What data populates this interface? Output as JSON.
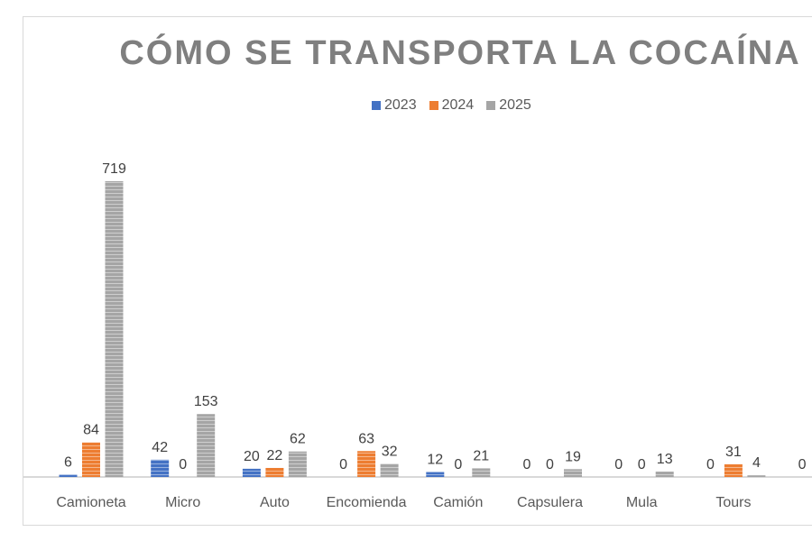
{
  "chart_data": {
    "type": "bar",
    "title": "CÓMO SE TRANSPORTA LA COCAÍNA",
    "categories": [
      "Camioneta",
      "Micro",
      "Auto",
      "Encomienda",
      "Camión",
      "Capsulera",
      "Mula",
      "Tours",
      ""
    ],
    "series": [
      {
        "name": "2023",
        "color": "#4472c4",
        "values": [
          6,
          42,
          20,
          0,
          12,
          0,
          0,
          0,
          0
        ]
      },
      {
        "name": "2024",
        "color": "#ed7d31",
        "values": [
          84,
          0,
          22,
          63,
          0,
          0,
          0,
          31,
          null
        ]
      },
      {
        "name": "2025",
        "color": "#a5a5a5",
        "values": [
          719,
          153,
          62,
          32,
          21,
          19,
          13,
          4,
          null
        ]
      }
    ],
    "legend_position": "top",
    "grid": false,
    "data_labels": true,
    "ylim": [
      0,
      719
    ]
  }
}
